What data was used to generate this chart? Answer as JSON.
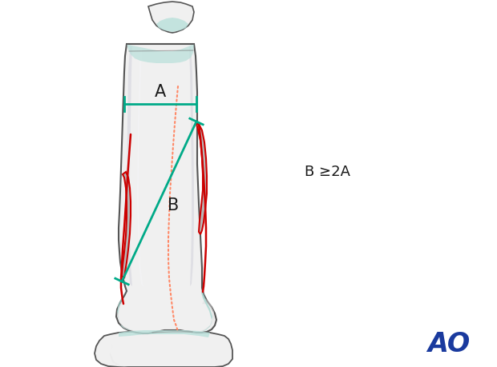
{
  "bg_color": "#ffffff",
  "bone_color_light": "#f0f0f0",
  "bone_color_mid": "#e0e0e0",
  "bone_color_dark": "#c8c8c8",
  "bone_outline": "#555555",
  "bone_outline_thin": "#777777",
  "cartilage_color": "#9ed4cc",
  "cartilage_color2": "#b8e0da",
  "fracture_fill": "#aaaaaa",
  "fracture_outline": "#cc0000",
  "green_line_color": "#00aa88",
  "dotted_line_color": "#ff8866",
  "label_A": "A",
  "label_B": "B",
  "label_formula": "B ≥2A",
  "ao_text": "AO",
  "ao_color": "#1a3a9e",
  "label_fontsize": 15,
  "formula_fontsize": 13,
  "ao_fontsize": 24
}
